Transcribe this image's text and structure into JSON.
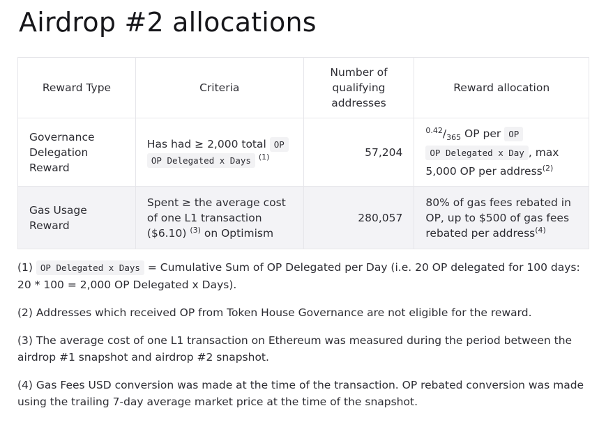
{
  "title": "Airdrop #2 allocations",
  "table": {
    "headers": {
      "reward_type": "Reward Type",
      "criteria": "Criteria",
      "qualifying_addresses": "Number of qualifying addresses",
      "reward_allocation": "Reward allocation"
    },
    "rows": [
      {
        "reward_type": "Governance Delegation Reward",
        "criteria_text": "Has had ≥ 2,000 total",
        "criteria_code": "OP Delegated x Days",
        "criteria_note": "(1)",
        "qualifying": "57,204",
        "alloc_numerator": "0.42",
        "alloc_slash": "/",
        "alloc_denominator": "365",
        "alloc_text1": "OP per",
        "alloc_code": "OP Delegated x Day",
        "alloc_text2": ", max 5,000 OP per address",
        "alloc_note": "(2)"
      },
      {
        "reward_type": "Gas Usage Reward",
        "criteria_text": "Spent ≥ the average cost of one L1 transaction ($6.10)",
        "criteria_note": "(3)",
        "criteria_text2": "on Optimism",
        "qualifying": "280,057",
        "alloc_text": "80% of gas fees rebated in OP, up to $500 of gas fees rebated per address",
        "alloc_note": "(4)"
      }
    ]
  },
  "notes": {
    "n1_prefix": "(1)",
    "n1_code": "OP Delegated x Days",
    "n1_text": "= Cumulative Sum of OP Delegated per Day (i.e. 20 OP delegated for 100 days: 20 * 100 = 2,000 OP Delegated x Days).",
    "n2": "(2) Addresses which received OP from Token House Governance are not eligible for the reward.",
    "n3": "(3) The average cost of one L1 transaction on Ethereum was measured during the period between the airdrop #1 snapshot and airdrop #2 snapshot.",
    "n4": "(4) Gas Fees USD conversion was made at the time of the transaction. OP rebated conversion was made using the trailing 7-day average market price at the time of the snapshot."
  }
}
